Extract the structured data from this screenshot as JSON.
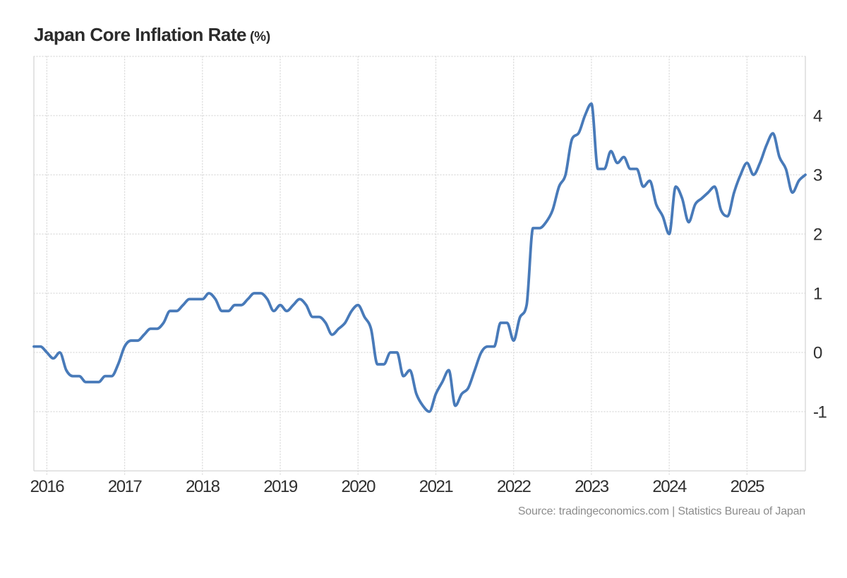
{
  "title": {
    "main": "Japan Core Inflation Rate",
    "unit": "(%)"
  },
  "source": "Source: tradingeconomics.com | Statistics Bureau of Japan",
  "colors": {
    "line": "#487ab9",
    "grid": "#d8d8d8",
    "axis_border": "#d3d3d3",
    "text": "#2f2f2f",
    "title_text": "#2b2b2b",
    "source_text": "#8c8c8c",
    "background": "#ffffff"
  },
  "chart_data": {
    "type": "line",
    "title": "Japan Core Inflation Rate (%)",
    "frequency": "monthly",
    "x_start": "2015-11",
    "x_end": "2025-10",
    "x_tick_labels": [
      "2016",
      "2017",
      "2018",
      "2019",
      "2020",
      "2021",
      "2022",
      "2023",
      "2024",
      "2025"
    ],
    "y_ticks": [
      4,
      3,
      2,
      1,
      0,
      -1
    ],
    "ylim": [
      -2,
      5
    ],
    "grid": "dotted",
    "legend": "none",
    "series": [
      {
        "name": "Japan Core Inflation Rate (%)",
        "values": [
          0.1,
          0.1,
          0.0,
          -0.1,
          0.0,
          -0.3,
          -0.4,
          -0.4,
          -0.5,
          -0.5,
          -0.5,
          -0.4,
          -0.4,
          -0.2,
          0.1,
          0.2,
          0.2,
          0.3,
          0.4,
          0.4,
          0.5,
          0.7,
          0.7,
          0.8,
          0.9,
          0.9,
          0.9,
          1.0,
          0.9,
          0.7,
          0.7,
          0.8,
          0.8,
          0.9,
          1.0,
          1.0,
          0.9,
          0.7,
          0.8,
          0.7,
          0.8,
          0.9,
          0.8,
          0.6,
          0.6,
          0.5,
          0.3,
          0.4,
          0.5,
          0.7,
          0.8,
          0.6,
          0.4,
          -0.2,
          -0.2,
          0.0,
          0.0,
          -0.4,
          -0.3,
          -0.7,
          -0.9,
          -1.0,
          -0.7,
          -0.5,
          -0.3,
          -0.9,
          -0.7,
          -0.6,
          -0.3,
          0.0,
          0.1,
          0.1,
          0.5,
          0.5,
          0.2,
          0.6,
          0.8,
          2.1,
          2.1,
          2.2,
          2.4,
          2.8,
          3.0,
          3.6,
          3.7,
          4.0,
          4.2,
          3.1,
          3.1,
          3.4,
          3.2,
          3.3,
          3.1,
          3.1,
          2.8,
          2.9,
          2.5,
          2.3,
          2.0,
          2.8,
          2.6,
          2.2,
          2.5,
          2.6,
          2.7,
          2.8,
          2.4,
          2.3,
          2.7,
          3.0,
          3.2,
          3.0,
          3.2,
          3.5,
          3.7,
          3.3,
          3.1,
          2.7,
          2.9,
          3.0
        ]
      }
    ]
  }
}
